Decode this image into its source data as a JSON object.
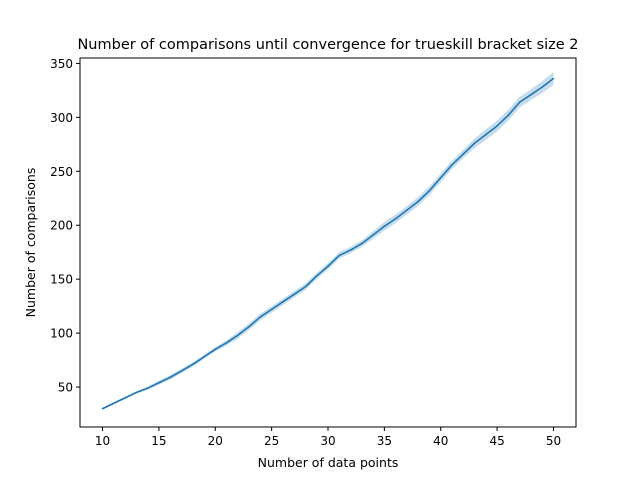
{
  "chart_data": {
    "type": "line",
    "title": "Number of comparisons until convergence for trueskill bracket size 2",
    "xlabel": "Number of data points",
    "ylabel": "Number of comparisons",
    "xlim": [
      8,
      52
    ],
    "ylim": [
      13,
      355
    ],
    "xticks": [
      10,
      15,
      20,
      25,
      30,
      35,
      40,
      45,
      50
    ],
    "yticks": [
      50,
      100,
      150,
      200,
      250,
      300,
      350
    ],
    "grid": false,
    "legend": "none",
    "series": [
      {
        "color": "#1f77b4",
        "x": [
          10,
          11,
          12,
          13,
          14,
          15,
          16,
          17,
          18,
          19,
          20,
          21,
          22,
          23,
          24,
          25,
          26,
          27,
          28,
          29,
          30,
          31,
          32,
          33,
          34,
          35,
          36,
          37,
          38,
          39,
          40,
          41,
          42,
          43,
          44,
          45,
          46,
          47,
          48,
          49,
          50
        ],
        "y": [
          30,
          35,
          40,
          45,
          49,
          54,
          59,
          65,
          71,
          78,
          85,
          91,
          98,
          106,
          115,
          122,
          129,
          136,
          143,
          153,
          162,
          172,
          177,
          183,
          191,
          199,
          206,
          214,
          222,
          232,
          244,
          256,
          266,
          276,
          284,
          292,
          302,
          314,
          321,
          328,
          336
        ],
        "ci_halfwidth": [
          1,
          1,
          1,
          1,
          1.5,
          2,
          2,
          2,
          2,
          2,
          2,
          2.5,
          3,
          3,
          3,
          3,
          3,
          3,
          3,
          3,
          3,
          3,
          3,
          3,
          3.5,
          4,
          4,
          4,
          4,
          4,
          4,
          4,
          4,
          4.5,
          5,
          5,
          5,
          5,
          5,
          5.5,
          6
        ]
      }
    ]
  }
}
